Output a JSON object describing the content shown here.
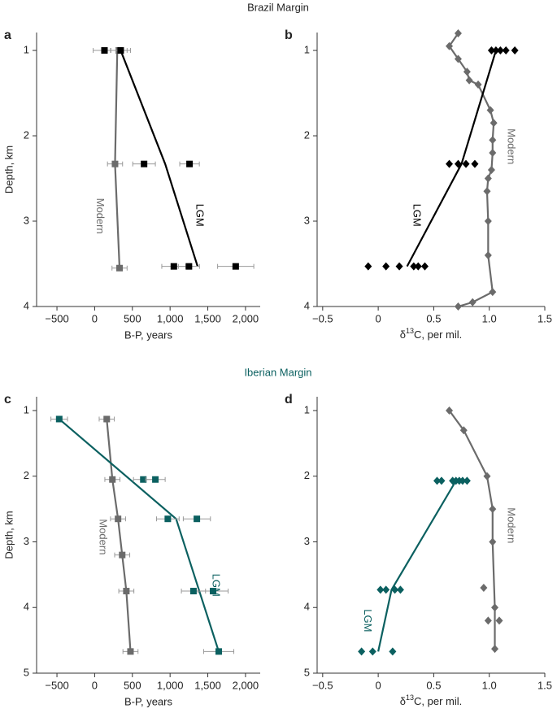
{
  "headers": [
    "Brazil Margin",
    "Iberian Margin"
  ],
  "chart_data": [
    {
      "type": "line",
      "panel": "a",
      "xlabel": "B-P, years",
      "ylabel": "Depth, km",
      "xlim": [
        -770,
        2195
      ],
      "ylim": [
        0.79,
        4
      ],
      "y_inverted": true,
      "xticks": [
        {
          "value": -500,
          "label": "−500"
        },
        0,
        500,
        {
          "value": 1000,
          "label": "1,000"
        },
        {
          "value": 1500,
          "label": "1,500"
        },
        {
          "value": 2000,
          "label": "2,000"
        }
      ],
      "yticks": [
        1,
        2,
        3,
        4
      ],
      "series": [
        {
          "name": "Modern",
          "color": "#6b6b6b",
          "marker": "square",
          "label_side": "left",
          "line": {
            "x": [
              300,
              270,
              330
            ],
            "y": [
              1.0,
              2.33,
              3.55
            ]
          },
          "points": {
            "x": [
              320,
              270,
              330
            ],
            "y": [
              1.0,
              2.33,
              3.55
            ],
            "xerr": [
              110,
              100,
              100
            ]
          }
        },
        {
          "name": "LGM",
          "color": "#000000",
          "marker": "square",
          "label_side": "right",
          "line": {
            "x": [
              345,
              935,
              1365
            ],
            "y": [
              1.0,
              2.33,
              3.53
            ]
          },
          "points": {
            "x": [
              130,
              345,
              655,
              1258,
              1050,
              1250,
              1870
            ],
            "y": [
              1.0,
              1.0,
              2.33,
              2.33,
              3.53,
              3.53,
              3.53
            ],
            "xerr": [
              150,
              130,
              150,
              130,
              160,
              140,
              240
            ]
          }
        }
      ]
    },
    {
      "type": "line",
      "panel": "b",
      "xlabel": {
        "pre": "δ",
        "sup": "13",
        "post": "C, per mil."
      },
      "xlim": [
        -0.55,
        1.5
      ],
      "ylim": [
        0.79,
        4
      ],
      "y_inverted": true,
      "xticks": [
        {
          "value": -0.5,
          "label": "−0.5"
        },
        0,
        0.5,
        {
          "value": 1,
          "label": "1.0"
        },
        1.5
      ],
      "yticks": [
        1,
        2,
        3,
        4
      ],
      "series": [
        {
          "name": "Modern",
          "color": "#6b6b6b",
          "marker": "diamond",
          "label_side": "right",
          "line": {
            "x": [
              0.72,
              0.64,
              0.72,
              0.8,
              0.82,
              0.9,
              1.01,
              1.04,
              1.03,
              1.03,
              1.02,
              0.99,
              0.98,
              0.99,
              0.99,
              1.03,
              0.85,
              0.72
            ],
            "y": [
              0.8,
              0.95,
              1.1,
              1.25,
              1.35,
              1.4,
              1.7,
              1.85,
              2.05,
              2.2,
              2.4,
              2.5,
              2.65,
              3.0,
              3.4,
              3.83,
              3.95,
              4.0
            ]
          },
          "points": {
            "x": [
              0.72,
              0.64,
              0.72,
              0.8,
              0.82,
              0.9,
              1.01,
              1.04,
              1.03,
              1.03,
              1.02,
              0.99,
              0.98,
              0.99,
              0.99,
              1.03,
              0.85,
              0.72
            ],
            "y": [
              0.8,
              0.95,
              1.1,
              1.25,
              1.35,
              1.4,
              1.7,
              1.85,
              2.05,
              2.2,
              2.4,
              2.5,
              2.65,
              3.0,
              3.4,
              3.83,
              3.95,
              4.0
            ]
          }
        },
        {
          "name": "LGM",
          "color": "#000000",
          "marker": "diamond",
          "label_side": "left",
          "line": {
            "x": [
              1.06,
              0.75,
              0.26
            ],
            "y": [
              1.0,
              2.33,
              3.53
            ]
          },
          "points": {
            "x": [
              1.02,
              1.06,
              1.1,
              1.15,
              1.23,
              0.64,
              0.72,
              0.79,
              0.87,
              -0.09,
              0.07,
              0.19,
              0.32,
              0.36,
              0.42
            ],
            "y": [
              1.0,
              1.0,
              1.0,
              1.0,
              1.0,
              2.33,
              2.33,
              2.33,
              2.33,
              3.53,
              3.53,
              3.53,
              3.53,
              3.53,
              3.53
            ]
          }
        }
      ]
    },
    {
      "type": "line",
      "panel": "c",
      "xlabel": "B-P, years",
      "ylabel": "Depth, km",
      "xlim": [
        -770,
        2195
      ],
      "ylim": [
        0.79,
        5
      ],
      "y_inverted": true,
      "xticks": [
        {
          "value": -500,
          "label": "−500"
        },
        0,
        500,
        {
          "value": 1000,
          "label": "1,000"
        },
        {
          "value": 1500,
          "label": "1,500"
        },
        {
          "value": 2000,
          "label": "2,000"
        }
      ],
      "yticks": [
        1,
        2,
        3,
        4,
        5
      ],
      "series": [
        {
          "name": "Modern",
          "color": "#6b6b6b",
          "marker": "square",
          "label_side": "left",
          "line": {
            "x": [
              160,
              235,
              310,
              365,
              420,
              475
            ],
            "y": [
              1.13,
              2.05,
              2.65,
              3.2,
              3.75,
              4.67
            ]
          },
          "points": {
            "x": [
              160,
              235,
              310,
              365,
              420,
              475
            ],
            "y": [
              1.13,
              2.05,
              2.65,
              3.2,
              3.75,
              4.67
            ],
            "xerr": [
              100,
              100,
              100,
              100,
              100,
              100
            ]
          }
        },
        {
          "name": "LGM",
          "color": "#0b6060",
          "marker": "square",
          "label_side": "right",
          "line": {
            "x": [
              -470,
              1080,
              1645
            ],
            "y": [
              1.13,
              2.65,
              4.67
            ]
          },
          "points": {
            "x": [
              -470,
              645,
              805,
              970,
              1355,
              1310,
              1570,
              1645
            ],
            "y": [
              1.13,
              2.05,
              2.05,
              2.65,
              2.65,
              3.75,
              3.75,
              4.67
            ],
            "xerr": [
              110,
              130,
              130,
              150,
              180,
              160,
              200,
              200
            ]
          }
        }
      ]
    },
    {
      "type": "line",
      "panel": "d",
      "xlabel": {
        "pre": "δ",
        "sup": "13",
        "post": "C, per mil."
      },
      "xlim": [
        -0.55,
        1.5
      ],
      "ylim": [
        0.79,
        5
      ],
      "y_inverted": true,
      "xticks": [
        {
          "value": -0.5,
          "label": "−0.5"
        },
        0,
        0.5,
        {
          "value": 1,
          "label": "1.0"
        },
        1.5
      ],
      "yticks": [
        1,
        2,
        3,
        4,
        5
      ],
      "series": [
        {
          "name": "Modern",
          "color": "#6b6b6b",
          "marker": "diamond",
          "label_side": "right",
          "line": {
            "x": [
              0.64,
              0.77,
              0.98,
              1.03,
              1.03,
              1.05,
              1.05
            ],
            "y": [
              1.0,
              1.3,
              2.0,
              2.5,
              3.0,
              4.0,
              4.63
            ]
          },
          "points": {
            "x": [
              0.64,
              0.77,
              0.98,
              1.03,
              1.03,
              0.95,
              1.05,
              0.99,
              1.09,
              1.05
            ],
            "y": [
              1.0,
              1.3,
              2.0,
              2.5,
              3.0,
              3.7,
              4.0,
              4.2,
              4.2,
              4.63
            ]
          }
        },
        {
          "name": "LGM",
          "color": "#0b6060",
          "marker": "diamond",
          "label_side": "left",
          "line": {
            "x": [
              0.7,
              0.12,
              0.0
            ],
            "y": [
              2.07,
              3.73,
              4.67
            ]
          },
          "points": {
            "x": [
              0.53,
              0.57,
              0.67,
              0.7,
              0.73,
              0.76,
              0.8,
              0.02,
              0.07,
              0.15,
              0.2,
              -0.15,
              -0.05,
              0.13
            ],
            "y": [
              2.07,
              2.07,
              2.07,
              2.07,
              2.07,
              2.07,
              2.07,
              3.73,
              3.73,
              3.73,
              3.73,
              4.67,
              4.67,
              4.67
            ]
          }
        }
      ]
    }
  ]
}
